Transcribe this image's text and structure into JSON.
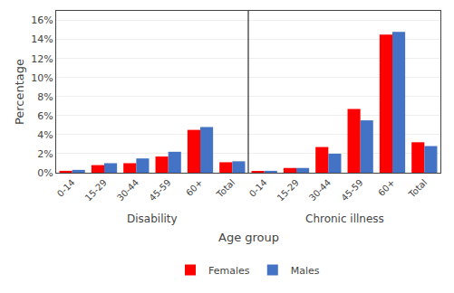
{
  "chart_data": {
    "type": "bar",
    "categories": [
      "0-14",
      "15-29",
      "30-44",
      "45-59",
      "60+",
      "Total",
      "0-14",
      "15-29",
      "30-44",
      "45-59",
      "60+",
      "Total"
    ],
    "series": [
      {
        "name": "Females",
        "color": "#FF0000",
        "values": [
          0.2,
          0.8,
          1.0,
          1.7,
          4.5,
          1.1,
          0.1,
          0.5,
          2.7,
          6.7,
          14.5,
          3.2
        ]
      },
      {
        "name": "Males",
        "color": "#4472C4",
        "values": [
          0.3,
          1.0,
          1.5,
          2.2,
          4.8,
          1.2,
          0.2,
          0.5,
          2.0,
          5.5,
          14.8,
          2.8
        ]
      }
    ],
    "xlabel": "Age group",
    "ylabel": "Percentage",
    "annotations": [
      "Disability",
      "Chronic illness"
    ],
    "ylim": [
      0,
      17
    ],
    "yticks": [
      {
        "value": 0,
        "label": "0%"
      },
      {
        "value": 2,
        "label": "2%"
      },
      {
        "value": 4,
        "label": "4%"
      },
      {
        "value": 6,
        "label": "6%"
      },
      {
        "value": 8,
        "label": "8%"
      },
      {
        "value": 10,
        "label": "10%"
      },
      {
        "value": 12,
        "label": "12%"
      },
      {
        "value": 14,
        "label": "14%"
      },
      {
        "value": 16,
        "label": "16%"
      }
    ],
    "grid": true,
    "legend": "bottom"
  }
}
